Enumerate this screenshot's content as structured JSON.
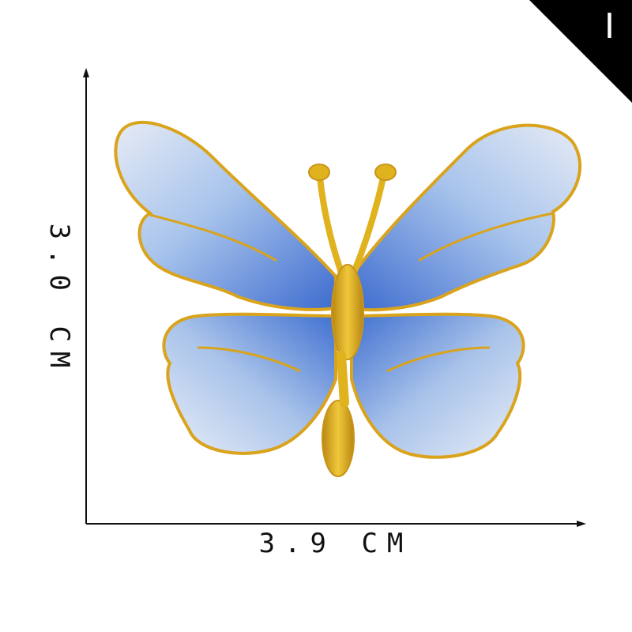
{
  "corner_tag": {
    "letter": "I"
  },
  "dimensions": {
    "width_label": "3.9 CM",
    "height_label": "3.0 CM"
  },
  "patch": {
    "subject": "embroidered-butterfly",
    "colors": {
      "wing_light": "#dfe6f3",
      "wing_mid": "#9fbde8",
      "wing_dark": "#3f6fd0",
      "outline_gold": "#d9a31c",
      "body_gold": "#e0b21e"
    }
  }
}
